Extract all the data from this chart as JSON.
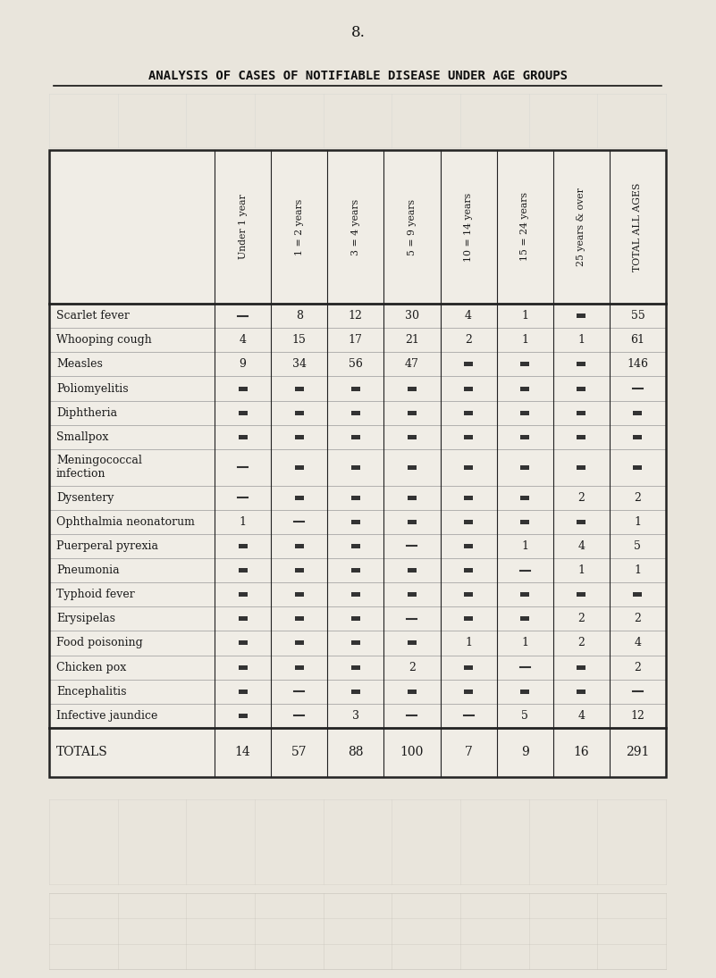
{
  "page_number": "8.",
  "title": "ANALYSIS OF CASES OF NOTIFIABLE DISEASE UNDER AGE GROUPS",
  "col_headers_rotated": [
    "Under 1 year",
    "1 = 2 years",
    "3 = 4 years",
    "5 = 9 years",
    "10 = 14 years",
    "15 = 24 years",
    "25 years & over",
    "TOTAL ALL AGES"
  ],
  "rows": [
    {
      "disease": "Scarlet fever",
      "vals": [
        "-",
        "8",
        "12",
        "30",
        "4",
        "1",
        "-",
        "55"
      ]
    },
    {
      "disease": "Whooping cough",
      "vals": [
        "4",
        "15",
        "17",
        "21",
        "2",
        "1",
        "1",
        "61"
      ]
    },
    {
      "disease": "Measles",
      "vals": [
        "9",
        "34",
        "56",
        "47",
        "-",
        "-",
        "-",
        "146"
      ]
    },
    {
      "disease": "Poliomyelitis",
      "vals": [
        "-",
        "-",
        "-",
        "-",
        "-",
        "-",
        "-",
        "-"
      ]
    },
    {
      "disease": "Diphtheria",
      "vals": [
        "-",
        "-",
        "-",
        "-",
        "-",
        "-",
        "-",
        "-"
      ]
    },
    {
      "disease": "Smallpox",
      "vals": [
        "-",
        "-",
        "-",
        "-",
        "-",
        "-",
        "-",
        "-"
      ]
    },
    {
      "disease": "Meningococcal\ninfection",
      "vals": [
        "-",
        "-",
        "-",
        "-",
        "-",
        "-",
        "-",
        "-"
      ]
    },
    {
      "disease": "Dysentery",
      "vals": [
        "-",
        "-",
        "-",
        "-",
        "-",
        "-",
        "2",
        "2"
      ]
    },
    {
      "disease": "Ophthalmia neonatorum",
      "vals": [
        "1",
        "-",
        "-",
        "-",
        "-",
        "-",
        "-",
        "1"
      ]
    },
    {
      "disease": "Puerperal pyrexia",
      "vals": [
        "-",
        "-",
        "-",
        "-",
        "-",
        "1",
        "4",
        "5"
      ]
    },
    {
      "disease": "Pneumonia",
      "vals": [
        "-",
        "-",
        "-",
        "-",
        "-",
        "-",
        "1",
        "1"
      ]
    },
    {
      "disease": "Typhoid fever",
      "vals": [
        "-",
        "-",
        "-",
        "-",
        "-",
        "-",
        "-",
        "-"
      ]
    },
    {
      "disease": "Erysipelas",
      "vals": [
        "-",
        "-",
        "-",
        "-",
        "-",
        "-",
        "2",
        "2"
      ]
    },
    {
      "disease": "Food poisoning",
      "vals": [
        "-",
        "-",
        "-",
        "-",
        "1",
        "1",
        "2",
        "4"
      ]
    },
    {
      "disease": "Chicken pox",
      "vals": [
        "-",
        "-",
        "-",
        "2",
        "-",
        "-",
        "-",
        "2"
      ]
    },
    {
      "disease": "Encephalitis",
      "vals": [
        "-",
        "-",
        "-",
        "-",
        "-",
        "-",
        "-",
        "-"
      ]
    },
    {
      "disease": "Infective jaundice",
      "vals": [
        "-",
        "-",
        "3",
        "-",
        "-",
        "5",
        "4",
        "12"
      ]
    }
  ],
  "totals_row": {
    "label": "TOTALS",
    "vals": [
      "14",
      "57",
      "88",
      "100",
      "7",
      "9",
      "16",
      "291"
    ]
  },
  "dash_rows": {
    "Scarlet fever": [
      true,
      false,
      false,
      false,
      false,
      false,
      true,
      false
    ],
    "Whooping cough": [
      false,
      false,
      false,
      false,
      false,
      false,
      false,
      false
    ],
    "Measles": [
      false,
      false,
      false,
      false,
      true,
      true,
      true,
      false
    ],
    "Poliomyelitis": [
      true,
      true,
      true,
      true,
      true,
      true,
      true,
      true
    ],
    "Diphtheria": [
      true,
      true,
      true,
      true,
      true,
      true,
      true,
      true
    ],
    "Smallpox": [
      true,
      true,
      true,
      true,
      true,
      true,
      true,
      true
    ],
    "Meningococcal": [
      true,
      true,
      true,
      true,
      true,
      true,
      true,
      true
    ],
    "Dysentery": [
      true,
      true,
      true,
      true,
      true,
      true,
      false,
      false
    ],
    "Ophthalmia neonatorum": [
      false,
      true,
      true,
      true,
      true,
      true,
      true,
      false
    ],
    "Puerperal pyrexia": [
      true,
      true,
      true,
      true,
      true,
      false,
      false,
      false
    ],
    "Pneumonia": [
      true,
      true,
      true,
      true,
      true,
      true,
      false,
      false
    ],
    "Typhoid fever": [
      true,
      true,
      true,
      true,
      true,
      true,
      true,
      true
    ],
    "Erysipelas": [
      true,
      true,
      true,
      true,
      true,
      true,
      false,
      false
    ],
    "Food poisoning": [
      true,
      true,
      true,
      true,
      false,
      false,
      false,
      false
    ],
    "Chicken pox": [
      true,
      true,
      true,
      false,
      true,
      true,
      true,
      false
    ],
    "Encephalitis": [
      true,
      true,
      true,
      true,
      true,
      true,
      true,
      true
    ],
    "Infective jaundice": [
      true,
      true,
      false,
      true,
      true,
      false,
      false,
      false
    ]
  },
  "small_box_rows": {
    "Scarlet fever": [
      false,
      false,
      false,
      false,
      false,
      false,
      true,
      false
    ],
    "Measles": [
      false,
      false,
      false,
      false,
      true,
      true,
      true,
      false
    ],
    "Poliomyelitis": [
      true,
      true,
      true,
      true,
      true,
      true,
      true,
      false
    ],
    "Diphtheria": [
      true,
      true,
      true,
      true,
      true,
      true,
      true,
      true
    ],
    "Smallpox": [
      true,
      true,
      true,
      true,
      true,
      true,
      true,
      true
    ],
    "Meningococcal": [
      false,
      true,
      true,
      true,
      true,
      true,
      true,
      true
    ],
    "Dysentery": [
      false,
      true,
      true,
      true,
      true,
      true,
      false,
      false
    ],
    "Ophthalmia neonatorum": [
      false,
      false,
      true,
      true,
      true,
      true,
      true,
      false
    ],
    "Puerperal pyrexia": [
      true,
      true,
      true,
      false,
      true,
      false,
      false,
      false
    ],
    "Pneumonia": [
      true,
      true,
      true,
      true,
      true,
      false,
      false,
      false
    ],
    "Typhoid fever": [
      true,
      true,
      true,
      true,
      true,
      true,
      true,
      true
    ],
    "Erysipelas": [
      true,
      true,
      true,
      false,
      true,
      true,
      false,
      false
    ],
    "Food poisoning": [
      true,
      true,
      true,
      true,
      false,
      false,
      false,
      false
    ],
    "Chicken pox": [
      true,
      true,
      true,
      false,
      true,
      false,
      true,
      false
    ],
    "Encephalitis": [
      true,
      false,
      true,
      true,
      true,
      true,
      true,
      false
    ],
    "Infective jaundice": [
      true,
      false,
      false,
      false,
      false,
      false,
      false,
      false
    ]
  },
  "bg_color": "#e9e5dc",
  "table_bg": "#f0ede6",
  "text_color": "#1a1a1a",
  "border_color": "#222222",
  "title_color": "#111111",
  "title_fontsize": 10,
  "page_num_fontsize": 12,
  "header_fontsize": 7.8,
  "body_fontsize": 9,
  "totals_fontsize": 10
}
